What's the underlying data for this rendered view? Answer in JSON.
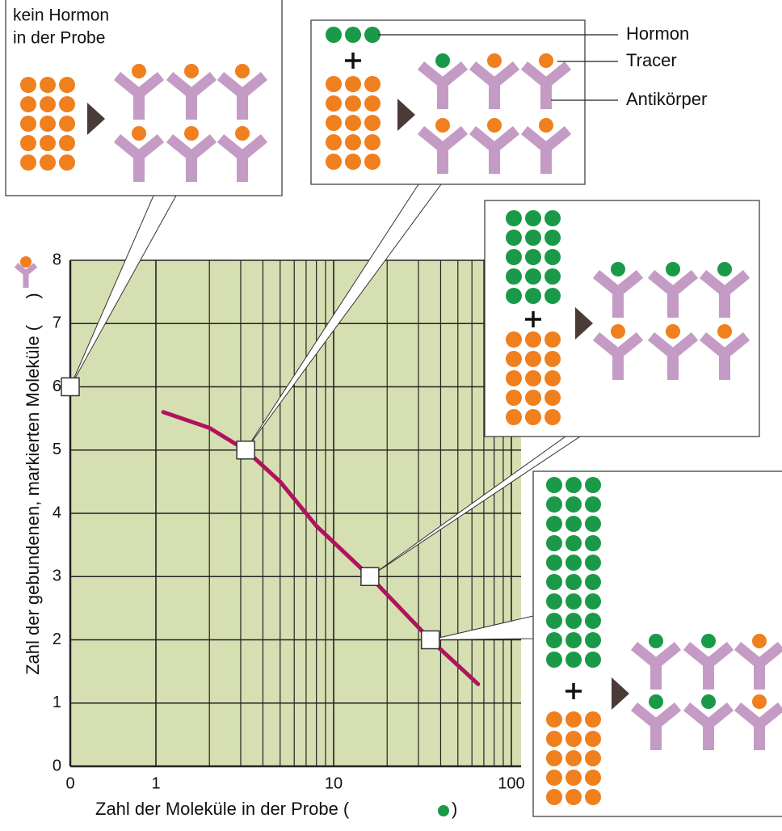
{
  "chart_data": {
    "type": "line",
    "xlabel": "Zahl der Moleküle in der Probe (",
    "xlabel_end": ")",
    "ylabel": "Zahl der gebundenen, markierten Moleküle (",
    "ylabel_end": ")",
    "x": [
      1.1,
      2,
      3.2,
      5,
      8,
      16,
      35,
      65
    ],
    "series": [
      {
        "color": "#b0135e",
        "values": [
          5.6,
          5.35,
          5.0,
          4.5,
          3.8,
          3.0,
          2.0,
          1.3
        ]
      }
    ],
    "markers": {
      "x": [
        0,
        3.2,
        16,
        35
      ],
      "values": [
        6,
        5,
        3,
        2
      ]
    },
    "xlim": [
      0,
      100
    ],
    "xticks": [
      0,
      1,
      10,
      100
    ],
    "minor_xticks": [
      2,
      3,
      4,
      5,
      6,
      7,
      8,
      9,
      20,
      30,
      40,
      50,
      60,
      70,
      80,
      90
    ],
    "ylim": [
      0,
      8
    ],
    "yticks": [
      0,
      1,
      2,
      3,
      4,
      5,
      6,
      7,
      8
    ],
    "log_x": true,
    "grid": true,
    "background": "#d6dfb1",
    "annotations": {
      "no_hormone": [
        "kein Hormon",
        "in der Probe"
      ],
      "legend": [
        "Hormon",
        "Tracer",
        "Antikörper"
      ]
    }
  }
}
